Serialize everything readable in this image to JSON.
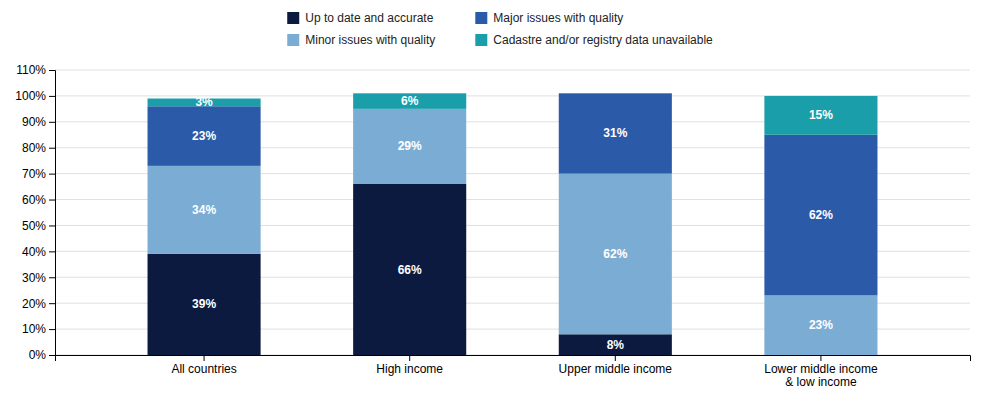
{
  "chart_data": {
    "type": "bar",
    "stacked": true,
    "categories": [
      "All countries",
      "High income",
      "Upper middle income",
      "Lower middle income\n& low income"
    ],
    "series": [
      {
        "name": "Up to date and accurate",
        "color": "#0D1A3F",
        "values": [
          39,
          66,
          8,
          0
        ],
        "value_labels": [
          "39%",
          "66%",
          "8%",
          null
        ]
      },
      {
        "name": "Minor issues with quality",
        "color": "#7BADD4",
        "values": [
          34,
          29,
          62,
          23
        ],
        "value_labels": [
          "34%",
          "29%",
          "62%",
          "23%"
        ]
      },
      {
        "name": "Major issues with quality",
        "color": "#2A5AA8",
        "values": [
          23,
          0,
          31,
          62
        ],
        "value_labels": [
          "23%",
          null,
          "31%",
          "62%"
        ]
      },
      {
        "name": "Cadastre and/or registry data unavailable",
        "color": "#1A9FAA",
        "values": [
          3,
          6,
          0,
          15
        ],
        "value_labels": [
          "3%",
          "6%",
          null,
          "15%"
        ]
      }
    ],
    "ylim": [
      0,
      110
    ],
    "yticks": [
      {
        "value": 0,
        "label": "0%"
      },
      {
        "value": 10,
        "label": "10%"
      },
      {
        "value": 20,
        "label": "20%"
      },
      {
        "value": 30,
        "label": "30%"
      },
      {
        "value": 40,
        "label": "40%"
      },
      {
        "value": 50,
        "label": "50%"
      },
      {
        "value": 60,
        "label": "60%"
      },
      {
        "value": 70,
        "label": "70%"
      },
      {
        "value": 80,
        "label": "80%"
      },
      {
        "value": 90,
        "label": "90%"
      },
      {
        "value": 100,
        "label": "100%"
      },
      {
        "value": 110,
        "label": "110%"
      }
    ],
    "grid": true,
    "legend": "top",
    "data_labels": true
  }
}
